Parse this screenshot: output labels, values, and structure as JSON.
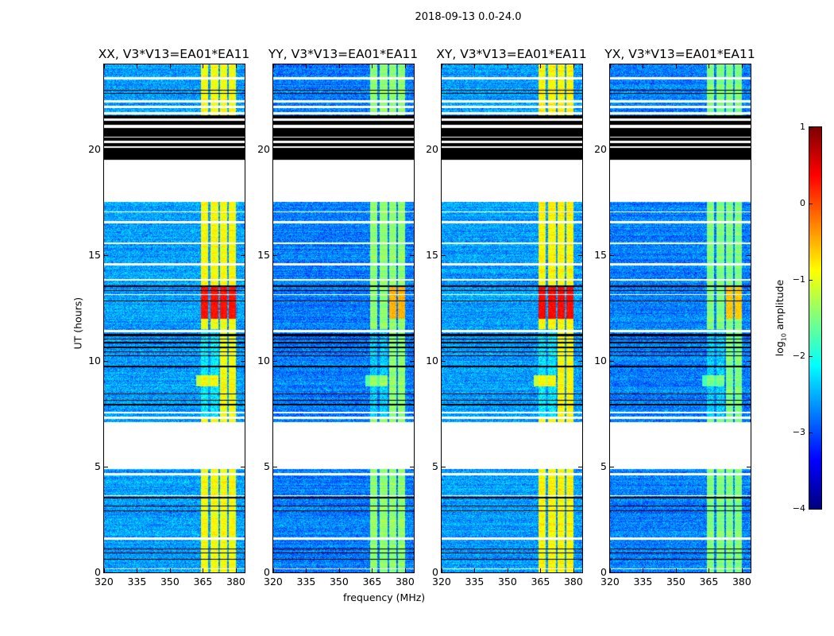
{
  "chart_data": {
    "type": "heatmap",
    "title": "2018-09-13 0.0-24.0",
    "xlabel": "frequency (MHz)",
    "ylabel": "UT (hours)",
    "xlim": [
      320,
      384
    ],
    "ylim": [
      0,
      24
    ],
    "xticks": [
      320,
      335,
      350,
      365,
      380
    ],
    "yticks": [
      0,
      5,
      10,
      15,
      20
    ],
    "panels": [
      {
        "title": "XX, V3*V13=EA01*EA11",
        "background_level": -2.6,
        "band_level": -0.9,
        "rfi_peak": 0.3
      },
      {
        "title": "YY, V3*V13=EA01*EA11",
        "background_level": -2.75,
        "band_level": -1.4,
        "rfi_peak": -0.5
      },
      {
        "title": "XY, V3*V13=EA01*EA11",
        "background_level": -2.6,
        "band_level": -0.85,
        "rfi_peak": 0.35
      },
      {
        "title": "YX, V3*V13=EA01*EA11",
        "background_level": -2.75,
        "band_level": -1.5,
        "rfi_peak": -0.6
      }
    ],
    "band_MHz": [
      364,
      380
    ],
    "rfi_hours": [
      12.0,
      13.5
    ],
    "flagged_hours": [
      [
        4.9,
        7.1
      ],
      [
        17.5,
        19.5
      ],
      [
        21.65,
        21.75
      ],
      [
        21.95,
        22.05
      ],
      [
        22.2,
        22.3
      ],
      [
        23.3,
        23.4
      ],
      [
        7.25,
        7.35
      ],
      [
        7.5,
        7.6
      ],
      [
        11.35,
        11.45
      ],
      [
        14.5,
        14.6
      ],
      [
        15.5,
        15.6
      ],
      [
        16.5,
        16.6
      ],
      [
        17.0,
        17.05
      ],
      [
        1.55,
        1.65
      ],
      [
        4.6,
        4.7
      ],
      [
        3.6,
        3.65
      ],
      [
        0.15,
        0.2
      ],
      [
        13.1,
        13.15
      ],
      [
        13.8,
        13.85
      ],
      [
        20.05,
        20.15
      ],
      [
        20.3,
        20.4
      ],
      [
        20.55,
        20.6
      ],
      [
        21.0,
        21.15
      ],
      [
        21.35,
        21.45
      ]
    ],
    "zero_hours": [
      [
        19.5,
        21.6
      ],
      [
        22.6,
        22.65
      ],
      [
        22.75,
        22.8
      ],
      [
        13.3,
        13.35
      ],
      [
        13.5,
        13.55
      ],
      [
        12.8,
        12.85
      ],
      [
        10.2,
        10.25
      ],
      [
        10.4,
        10.45
      ],
      [
        10.6,
        10.65
      ],
      [
        10.8,
        10.9
      ],
      [
        11.0,
        11.05
      ],
      [
        11.15,
        11.25
      ],
      [
        9.7,
        9.75
      ],
      [
        8.4,
        8.45
      ],
      [
        8.1,
        8.15
      ],
      [
        7.9,
        7.95
      ],
      [
        3.5,
        3.55
      ],
      [
        3.4,
        3.43
      ],
      [
        3.1,
        3.15
      ],
      [
        2.9,
        2.93
      ],
      [
        1.1,
        1.13
      ],
      [
        0.9,
        0.93
      ],
      [
        0.6,
        0.63
      ]
    ],
    "colorbar": {
      "label": "log10 amplitude",
      "label_main": "log",
      "label_sub": "10",
      "label_rest": " amplitude",
      "range": [
        -4,
        1
      ],
      "ticks": [
        "1",
        "0",
        "−1",
        "−2",
        "−3",
        "−4"
      ]
    }
  }
}
